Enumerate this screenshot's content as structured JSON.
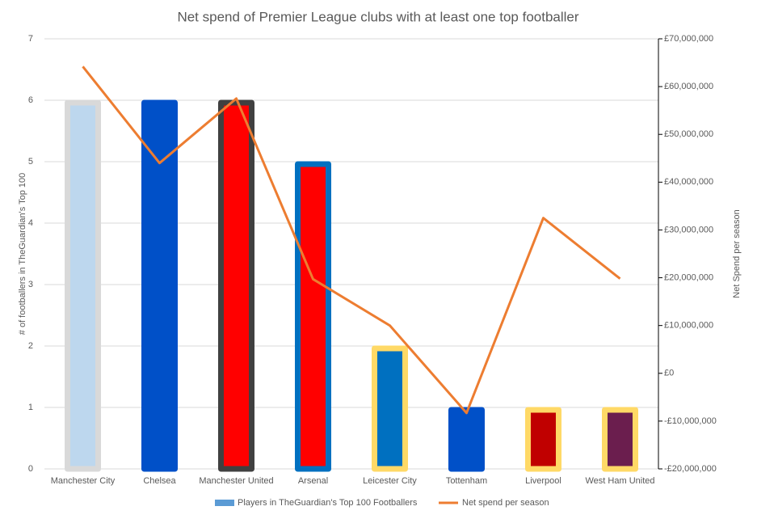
{
  "chart_data": {
    "type": "bar",
    "title": "Net spend of Premier League clubs with at least one top footballer",
    "categories": [
      "Manchester City",
      "Chelsea",
      "Manchester United",
      "Arsenal",
      "Leicester City",
      "Tottenham",
      "Liverpool",
      "West Ham United"
    ],
    "series": [
      {
        "name": "Players in TheGuardian's Top 100 Footballers",
        "type": "bar",
        "color": "#5b9bd5",
        "values": [
          6,
          6,
          6,
          5,
          2,
          1,
          1,
          1
        ],
        "colors": [
          "#bdd7ee",
          "#0050c8",
          "#ff0000",
          "#ff0000",
          "#0070c0",
          "#0050c8",
          "#c00000",
          "#6b1e4e"
        ],
        "border_colors": [
          "#d9d9d9",
          "#0050c8",
          "#404040",
          "#0070c0",
          "#ffd966",
          "#0050c8",
          "#ffd966",
          "#ffd966"
        ]
      },
      {
        "name": "Net spend per season",
        "type": "line",
        "axis": "y2",
        "color": "#ed7d31",
        "values": [
          64200000,
          44000000,
          57500000,
          19700000,
          10000000,
          -8300000,
          32500000,
          19800000
        ]
      }
    ],
    "y_label": "# of footballers in TheGuardian's Top 100",
    "y2_label": "Net Spend per season",
    "ylim": [
      0,
      7
    ],
    "yticks": [
      0,
      1,
      2,
      3,
      4,
      5,
      6,
      7
    ],
    "y2lim": [
      -20000000,
      70000000
    ],
    "y2ticks": [
      {
        "value": -20000000,
        "label": "-£20,000,000"
      },
      {
        "value": -10000000,
        "label": "-£10,000,000"
      },
      {
        "value": 0,
        "label": "£0"
      },
      {
        "value": 10000000,
        "label": "£10,000,000"
      },
      {
        "value": 20000000,
        "label": "£20,000,000"
      },
      {
        "value": 30000000,
        "label": "£30,000,000"
      },
      {
        "value": 40000000,
        "label": "£40,000,000"
      },
      {
        "value": 50000000,
        "label": "£50,000,000"
      },
      {
        "value": 60000000,
        "label": "£60,000,000"
      },
      {
        "value": 70000000,
        "label": "£70,000,000"
      }
    ],
    "grid": true,
    "legend": "bottom"
  }
}
